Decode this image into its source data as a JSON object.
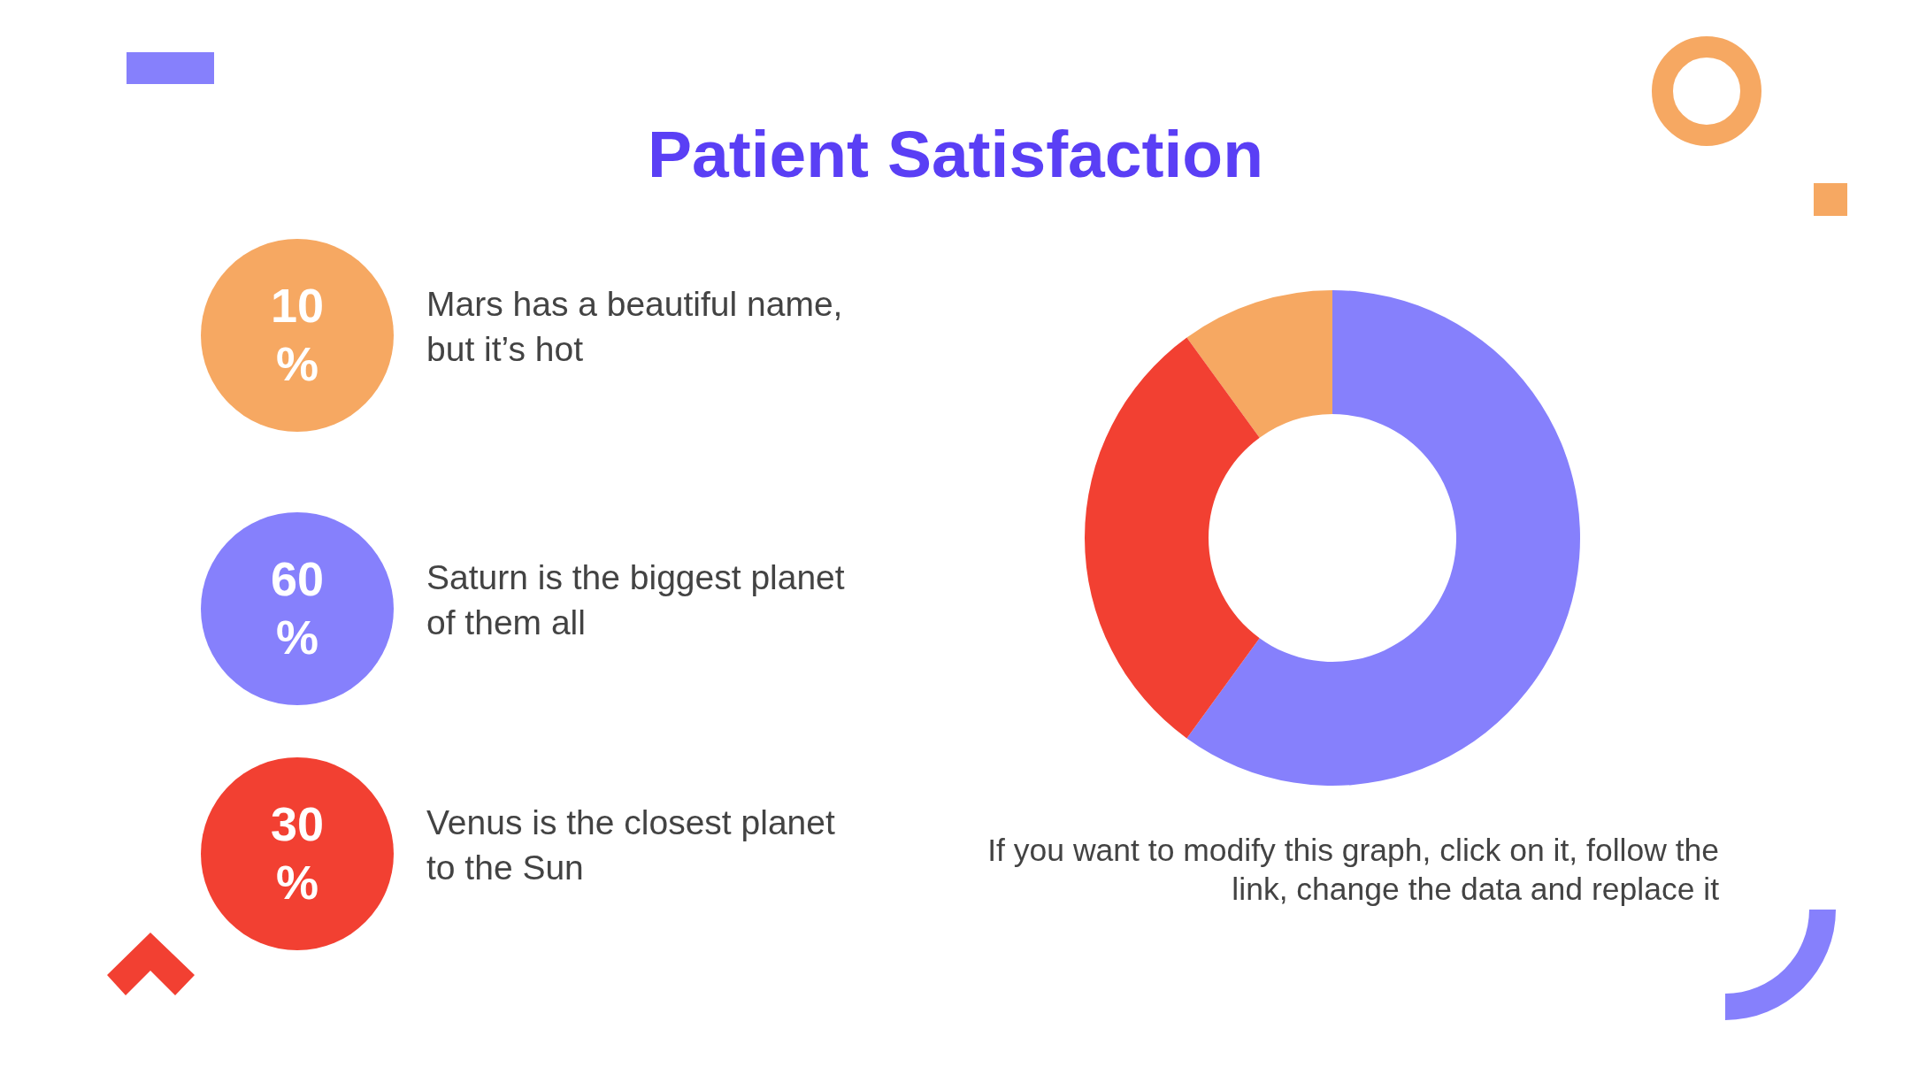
{
  "chart_data": {
    "type": "donut",
    "title": "Patient Satisfaction",
    "categories": [
      null,
      null,
      null
    ],
    "values": [
      10,
      60,
      30
    ],
    "colors": [
      "#f6a862",
      "#8680fc",
      "#f24032"
    ],
    "annotations": [
      "10 %",
      "Mars has a beautiful name, but it’s hot",
      "60 %",
      "Saturn is the biggest planet of them all",
      "30 %",
      "Venus is the closest planet to the Sun",
      "If you want to modify this graph, click on it, follow the link, change the data and replace it"
    ]
  }
}
